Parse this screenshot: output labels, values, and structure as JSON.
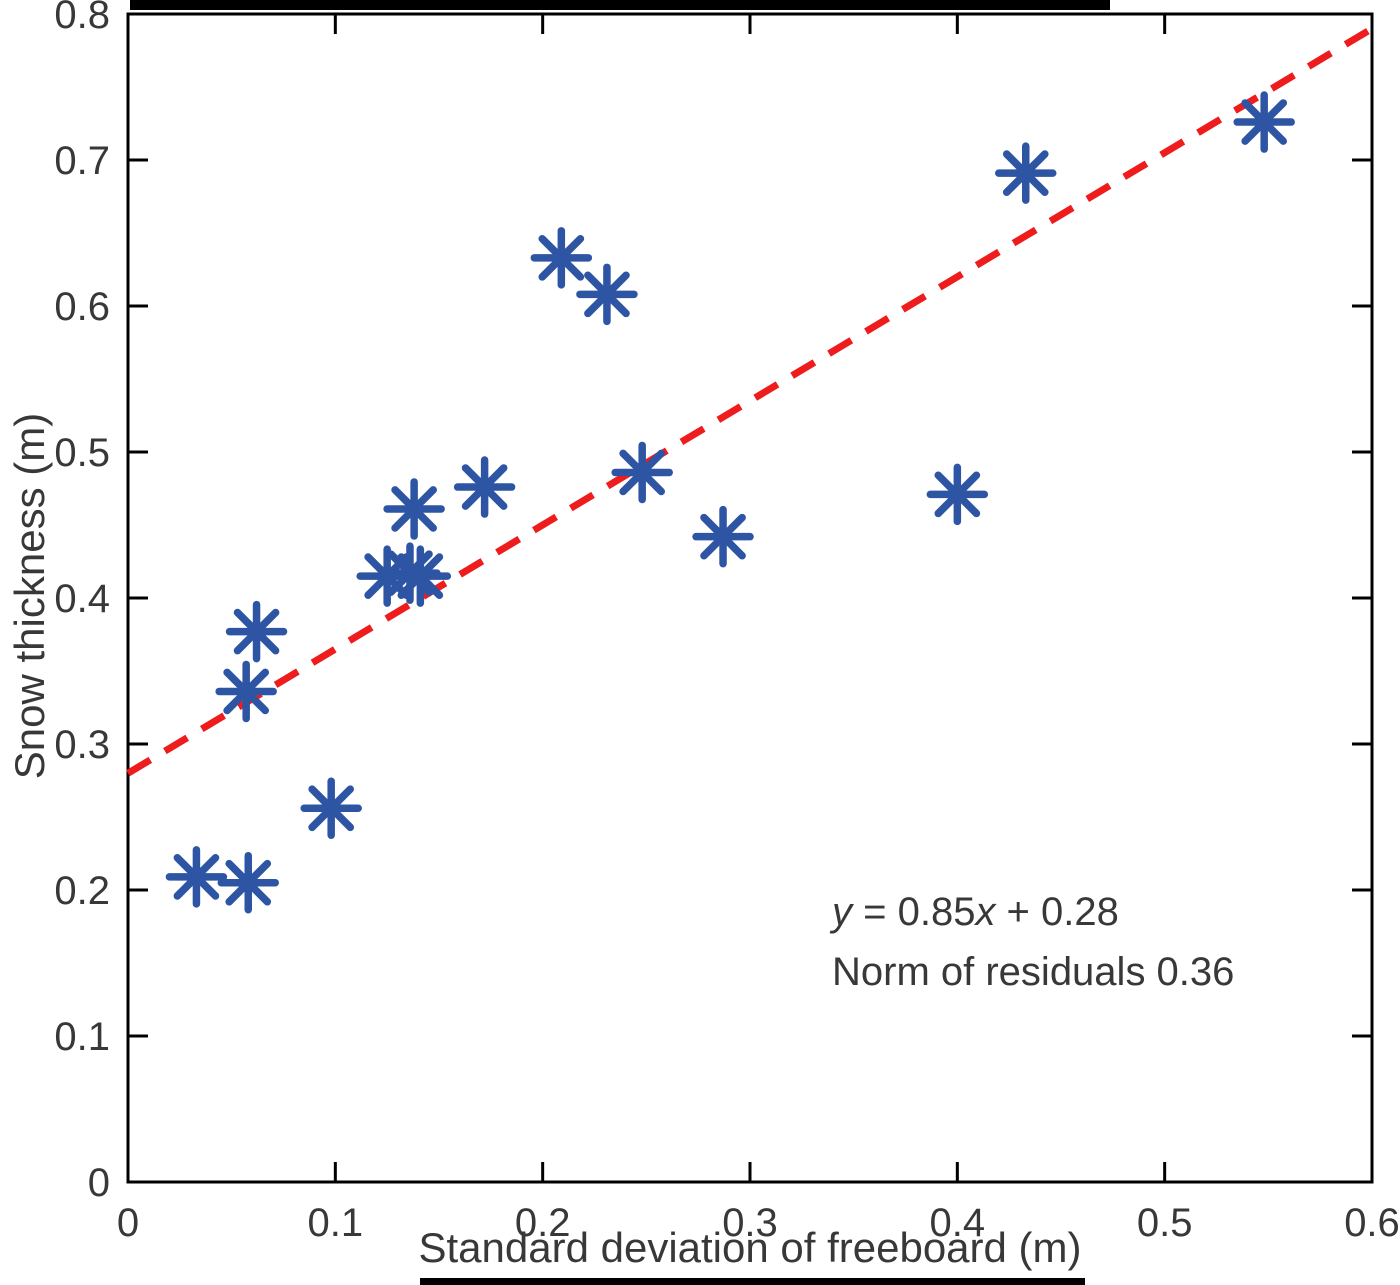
{
  "chart_data": {
    "type": "scatter",
    "title": "",
    "xlabel": "Standard deviation of freeboard (m)",
    "ylabel": "Snow thickness (m)",
    "xlim": [
      0,
      0.6
    ],
    "ylim": [
      0,
      0.8
    ],
    "xticks": [
      0,
      0.1,
      0.2,
      0.3,
      0.4,
      0.5,
      0.6
    ],
    "yticks": [
      0,
      0.1,
      0.2,
      0.3,
      0.4,
      0.5,
      0.6,
      0.7,
      0.8
    ],
    "grid": false,
    "legend": null,
    "points": [
      {
        "x": 0.033,
        "y": 0.209
      },
      {
        "x": 0.058,
        "y": 0.205
      },
      {
        "x": 0.057,
        "y": 0.336
      },
      {
        "x": 0.062,
        "y": 0.377
      },
      {
        "x": 0.098,
        "y": 0.256
      },
      {
        "x": 0.125,
        "y": 0.415
      },
      {
        "x": 0.136,
        "y": 0.417
      },
      {
        "x": 0.141,
        "y": 0.415
      },
      {
        "x": 0.138,
        "y": 0.461
      },
      {
        "x": 0.172,
        "y": 0.476
      },
      {
        "x": 0.209,
        "y": 0.633
      },
      {
        "x": 0.231,
        "y": 0.608
      },
      {
        "x": 0.248,
        "y": 0.486
      },
      {
        "x": 0.287,
        "y": 0.442
      },
      {
        "x": 0.4,
        "y": 0.471
      },
      {
        "x": 0.433,
        "y": 0.691
      },
      {
        "x": 0.548,
        "y": 0.726
      }
    ],
    "fit_line": {
      "slope": 0.85,
      "intercept": 0.28,
      "x_start": 0,
      "x_end": 0.6,
      "style": "dashed",
      "color": "#ee1c1c"
    },
    "marker": {
      "shape": "asterisk",
      "color": "#2d55a4",
      "size": 27,
      "stroke_width": 7.5
    },
    "annotation": {
      "var1": "y",
      "eq_mid": " = 0.85",
      "var2": "x",
      "eq_tail": " + 0.28",
      "line1_text": "y = 0.85x + 0.28",
      "line2": "Norm of residuals 0.36"
    },
    "colors": {
      "marker": "#2d55a4",
      "fit_line": "#ee1c1c",
      "axis": "#000000",
      "text": "#383838",
      "background": "#ffffff"
    }
  }
}
